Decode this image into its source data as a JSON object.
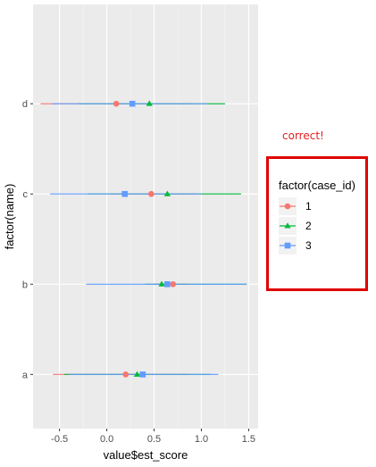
{
  "chart_data": {
    "type": "scatter",
    "title": "",
    "xlabel": "value$est_score",
    "ylabel": "factor(name)",
    "categories": [
      "a",
      "b",
      "c",
      "d"
    ],
    "xlim": [
      -0.78,
      1.6
    ],
    "xticks": [
      -0.5,
      0.0,
      0.5,
      1.0,
      1.5
    ],
    "xtick_labels": [
      "-0.5",
      "0.0",
      "0.5",
      "1.0",
      "1.5"
    ],
    "grid": true,
    "legend_title": "factor(case_id)",
    "legend_position": "right",
    "series": [
      {
        "name": "1",
        "color": "#F8766D",
        "marker": "circle",
        "points": [
          {
            "name": "a",
            "x": 0.2,
            "lo": -0.57,
            "hi": 0.87
          },
          {
            "name": "b",
            "x": 0.7,
            "lo": 0.5,
            "hi": 0.85
          },
          {
            "name": "c",
            "x": 0.47,
            "lo": 0.05,
            "hi": 0.95
          },
          {
            "name": "d",
            "x": 0.1,
            "lo": -0.7,
            "hi": 0.9
          }
        ]
      },
      {
        "name": "2",
        "color": "#00BA38",
        "marker": "triangle",
        "points": [
          {
            "name": "a",
            "x": 0.32,
            "lo": -0.45,
            "hi": 1.1
          },
          {
            "name": "b",
            "x": 0.58,
            "lo": 0.4,
            "hi": 1.48
          },
          {
            "name": "c",
            "x": 0.64,
            "lo": -0.2,
            "hi": 1.42
          },
          {
            "name": "d",
            "x": 0.45,
            "lo": -0.3,
            "hi": 1.25
          }
        ]
      },
      {
        "name": "3",
        "color": "#619CFF",
        "marker": "square",
        "points": [
          {
            "name": "a",
            "x": 0.38,
            "lo": -0.4,
            "hi": 1.18
          },
          {
            "name": "b",
            "x": 0.64,
            "lo": -0.22,
            "hi": 1.48
          },
          {
            "name": "c",
            "x": 0.19,
            "lo": -0.6,
            "hi": 1.0
          },
          {
            "name": "d",
            "x": 0.27,
            "lo": -0.58,
            "hi": 1.07
          }
        ]
      }
    ]
  },
  "annotation": "correct!"
}
